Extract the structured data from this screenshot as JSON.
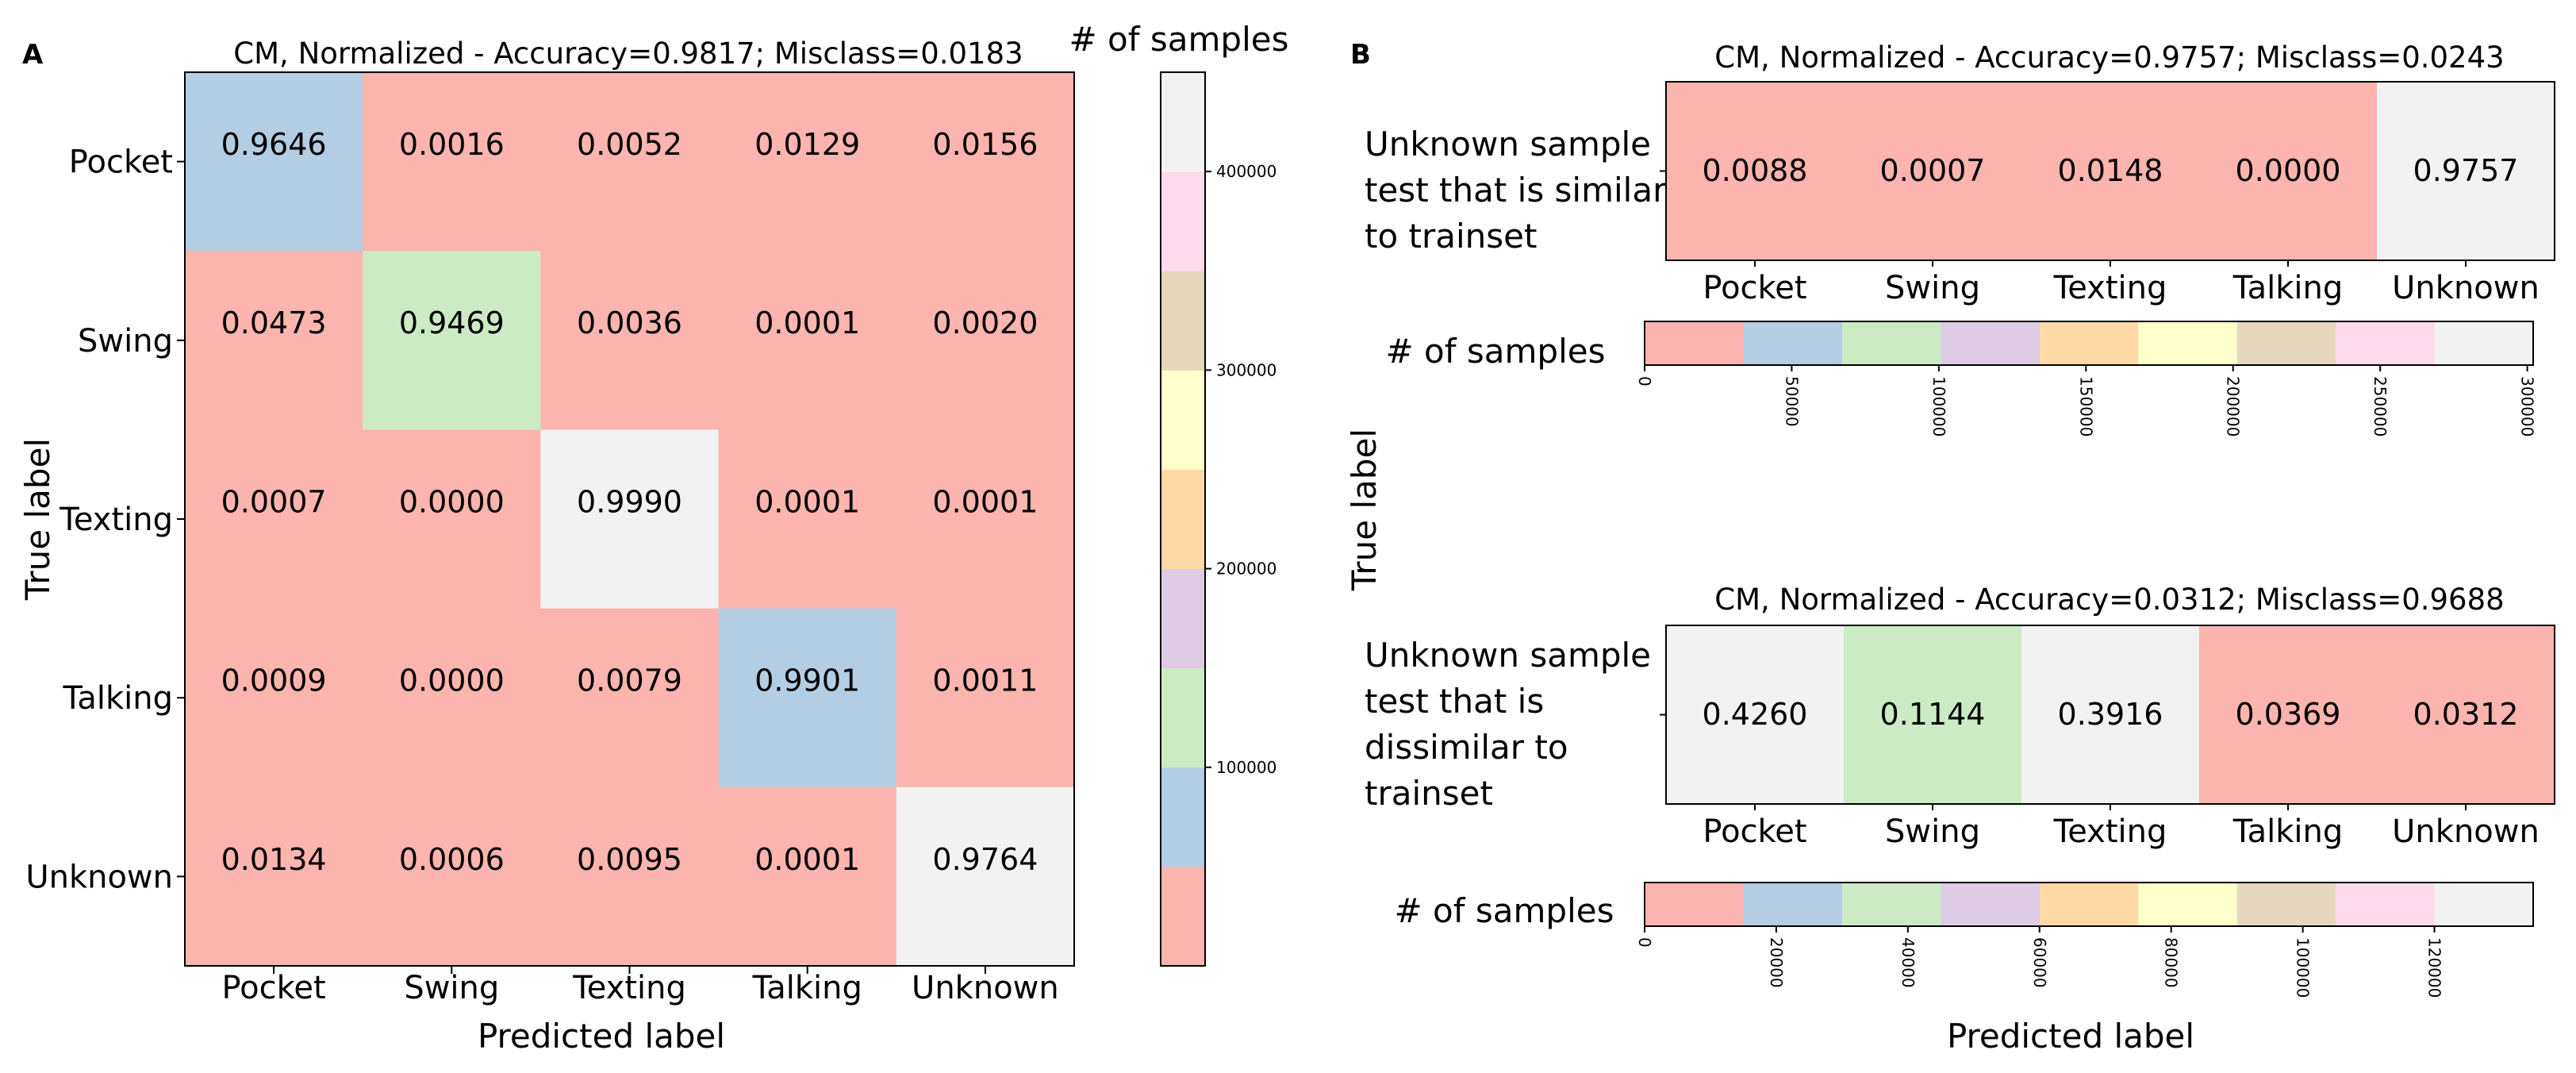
{
  "panel_a_letter": "A",
  "panel_b_letter": "B",
  "panel_b_ylabel": "True label",
  "panel_b_xlabel": "Predicted label",
  "chart_data": [
    {
      "id": "A",
      "type": "heatmap",
      "title": "CM, Normalized - Accuracy=0.9817; Misclass=0.0183",
      "xlabel": "Predicted label",
      "ylabel": "True label",
      "x_categories": [
        "Pocket",
        "Swing",
        "Texting",
        "Talking",
        "Unknown"
      ],
      "y_categories": [
        "Pocket",
        "Swing",
        "Texting",
        "Talking",
        "Unknown"
      ],
      "values": [
        [
          "0.9646",
          "0.0016",
          "0.0052",
          "0.0129",
          "0.0156"
        ],
        [
          "0.0473",
          "0.9469",
          "0.0036",
          "0.0001",
          "0.0020"
        ],
        [
          "0.0007",
          "0.0000",
          "0.9990",
          "0.0001",
          "0.0001"
        ],
        [
          "0.0009",
          "0.0000",
          "0.0079",
          "0.9901",
          "0.0011"
        ],
        [
          "0.0134",
          "0.0006",
          "0.0095",
          "0.0001",
          "0.9764"
        ]
      ],
      "cell_color_bins": [
        [
          1,
          0,
          0,
          0,
          0
        ],
        [
          0,
          2,
          0,
          0,
          0
        ],
        [
          0,
          0,
          8,
          0,
          0
        ],
        [
          0,
          0,
          0,
          1,
          0
        ],
        [
          0,
          0,
          0,
          0,
          8
        ]
      ],
      "colorbar": {
        "title": "# of samples",
        "orientation": "vertical",
        "range": [
          0,
          450000
        ],
        "ticks": [
          "100000",
          "200000",
          "300000",
          "400000"
        ],
        "tick_values": [
          100000,
          200000,
          300000,
          400000
        ]
      }
    },
    {
      "id": "B1",
      "type": "heatmap",
      "title": "CM, Normalized - Accuracy=0.9757; Misclass=0.0243",
      "row_label": [
        "Unknown sample",
        "test that is similar",
        "to trainset"
      ],
      "x_categories": [
        "Pocket",
        "Swing",
        "Texting",
        "Talking",
        "Unknown"
      ],
      "values": [
        "0.0088",
        "0.0007",
        "0.0148",
        "0.0000",
        "0.9757"
      ],
      "cell_color_bins": [
        0,
        0,
        0,
        0,
        8
      ],
      "colorbar": {
        "title": "# of samples",
        "orientation": "horizontal",
        "range": [
          0,
          302000
        ],
        "ticks": [
          "0",
          "50000",
          "100000",
          "150000",
          "200000",
          "250000",
          "300000"
        ],
        "tick_values": [
          0,
          50000,
          100000,
          150000,
          200000,
          250000,
          300000
        ]
      }
    },
    {
      "id": "B2",
      "type": "heatmap",
      "title": "CM, Normalized - Accuracy=0.0312; Misclass=0.9688",
      "row_label": [
        "Unknown sample",
        "test that is",
        "dissimilar to",
        "trainset"
      ],
      "x_categories": [
        "Pocket",
        "Swing",
        "Texting",
        "Talking",
        "Unknown"
      ],
      "values": [
        "0.4260",
        "0.1144",
        "0.3916",
        "0.0369",
        "0.0312"
      ],
      "cell_color_bins": [
        8,
        2,
        8,
        0,
        0
      ],
      "colorbar": {
        "title": "# of samples",
        "orientation": "horizontal",
        "range": [
          0,
          135000
        ],
        "ticks": [
          "0",
          "20000",
          "40000",
          "60000",
          "80000",
          "100000",
          "120000"
        ],
        "tick_values": [
          0,
          20000,
          40000,
          60000,
          80000,
          100000,
          120000
        ]
      }
    }
  ],
  "palette": [
    "#fbb4ae",
    "#b3cde3",
    "#ccebc5",
    "#decbe4",
    "#fed9a6",
    "#ffffcc",
    "#e5d8bd",
    "#fddaec",
    "#f2f2f2"
  ]
}
